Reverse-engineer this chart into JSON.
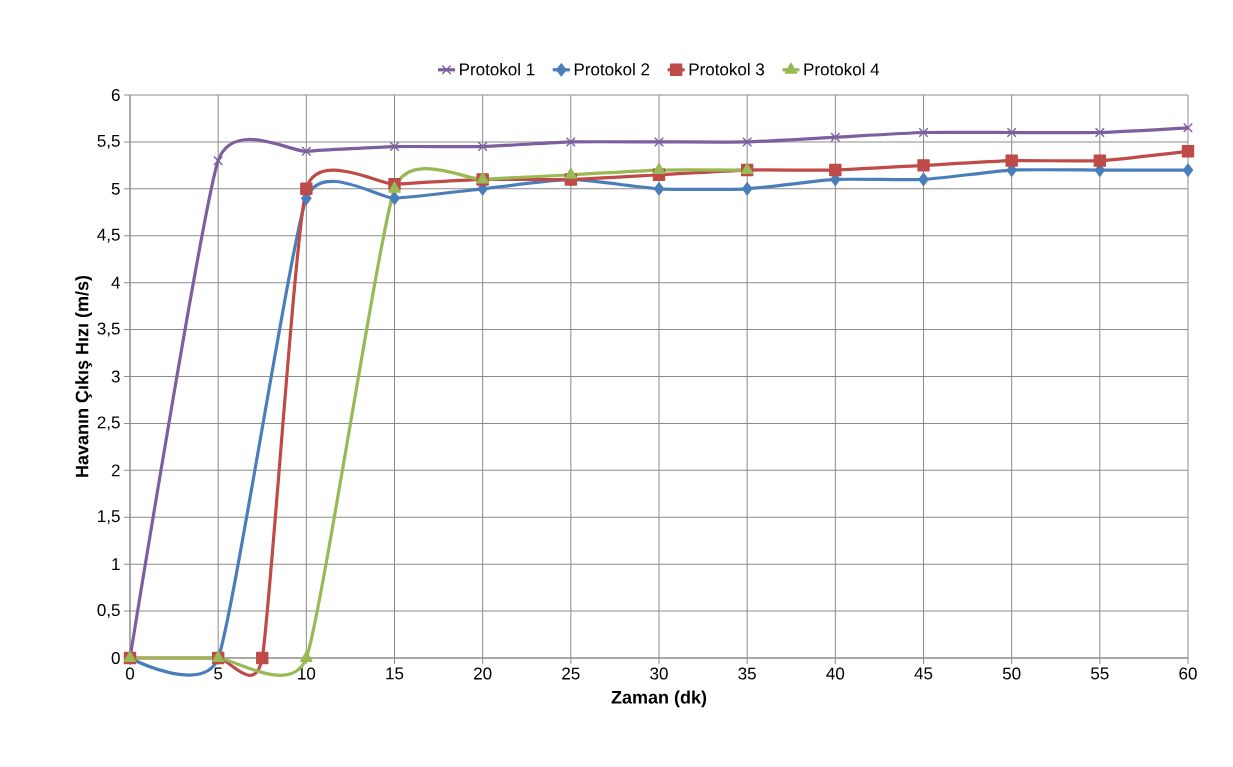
{
  "chart_data": {
    "type": "line",
    "xlabel": "Zaman (dk)",
    "ylabel": "Havanın Çıkış Hızı (m/s)",
    "xlim": [
      0,
      60
    ],
    "xticks": [
      0,
      5,
      10,
      15,
      20,
      25,
      30,
      35,
      40,
      45,
      50,
      55,
      60
    ],
    "ylim": [
      0,
      6
    ],
    "yticks": [
      0,
      {
        "value": 0.5,
        "label": "0,5"
      },
      1,
      {
        "value": 1.5,
        "label": "1,5"
      },
      2,
      {
        "value": 2.5,
        "label": "2,5"
      },
      3,
      {
        "value": 3.5,
        "label": "3,5"
      },
      4,
      {
        "value": 4.5,
        "label": "4,5"
      },
      5,
      {
        "value": 5.5,
        "label": "5,5"
      },
      6
    ],
    "grid": true,
    "legend": "top",
    "series": [
      {
        "name": "Protokol 1",
        "color": "#7d5fa0",
        "marker": "cross",
        "x": [
          0,
          5,
          10,
          15,
          20,
          25,
          30,
          35,
          40,
          45,
          50,
          55,
          60
        ],
        "values": [
          0,
          5.3,
          5.4,
          5.45,
          5.45,
          5.5,
          5.5,
          5.5,
          5.55,
          5.6,
          5.6,
          5.6,
          5.65
        ]
      },
      {
        "name": "Protokol 2",
        "color": "#4a7ebb",
        "marker": "diamond",
        "x": [
          0,
          5,
          10,
          15,
          20,
          25,
          30,
          35,
          40,
          45,
          50,
          55,
          60
        ],
        "values": [
          0,
          0,
          4.9,
          4.9,
          5.0,
          5.1,
          5.0,
          5.0,
          5.1,
          5.1,
          5.2,
          5.2,
          5.2
        ]
      },
      {
        "name": "Protokol 3",
        "color": "#be4b48",
        "marker": "square",
        "x": [
          0,
          5,
          7.5,
          10,
          15,
          20,
          25,
          30,
          35,
          40,
          45,
          50,
          55,
          60
        ],
        "values": [
          0,
          0,
          0,
          5.0,
          5.05,
          5.1,
          5.1,
          5.15,
          5.2,
          5.2,
          5.25,
          5.3,
          5.3,
          5.4
        ]
      },
      {
        "name": "Protokol 4",
        "color": "#98b954",
        "marker": "triangle",
        "x": [
          0,
          5,
          10,
          15,
          20,
          25,
          30,
          35
        ],
        "values": [
          0,
          0,
          0,
          5.0,
          5.1,
          5.15,
          5.2,
          5.2
        ]
      }
    ]
  }
}
